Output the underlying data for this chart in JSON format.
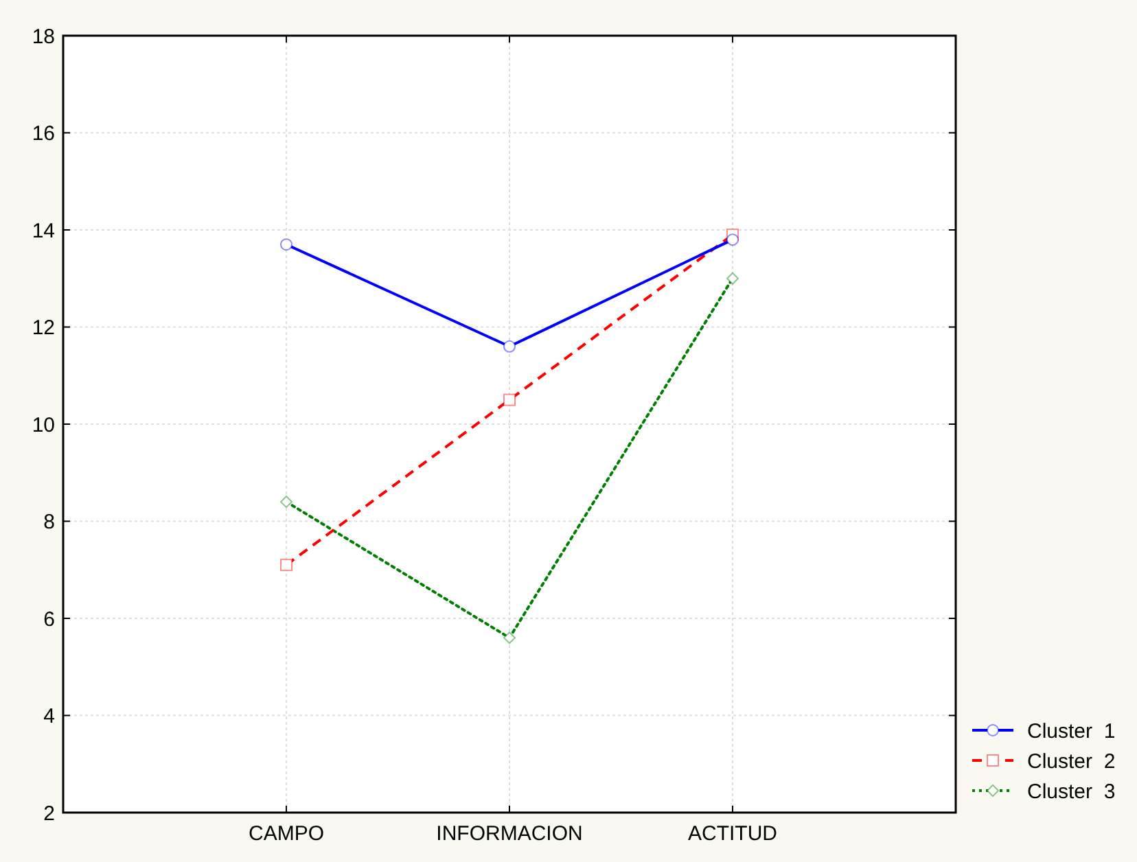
{
  "chart_data": {
    "type": "line",
    "categories": [
      "CAMPO",
      "INFORMACION",
      "ACTITUD"
    ],
    "series": [
      {
        "name": "Cluster  1",
        "color": "#0000ff",
        "marker": "circle",
        "line_style": "solid",
        "values": [
          13.7,
          11.6,
          13.8
        ]
      },
      {
        "name": "Cluster  2",
        "color": "#ff0000",
        "marker": "square",
        "line_style": "dashed",
        "values": [
          7.1,
          10.5,
          13.9
        ]
      },
      {
        "name": "Cluster  3",
        "color": "#008000",
        "marker": "diamond",
        "line_style": "dotted",
        "values": [
          8.4,
          5.6,
          13.0
        ]
      }
    ],
    "ylim": [
      2,
      18
    ],
    "yticks": [
      2,
      4,
      6,
      8,
      10,
      12,
      14,
      16,
      18
    ],
    "grid": true,
    "legend": "bottom right"
  }
}
